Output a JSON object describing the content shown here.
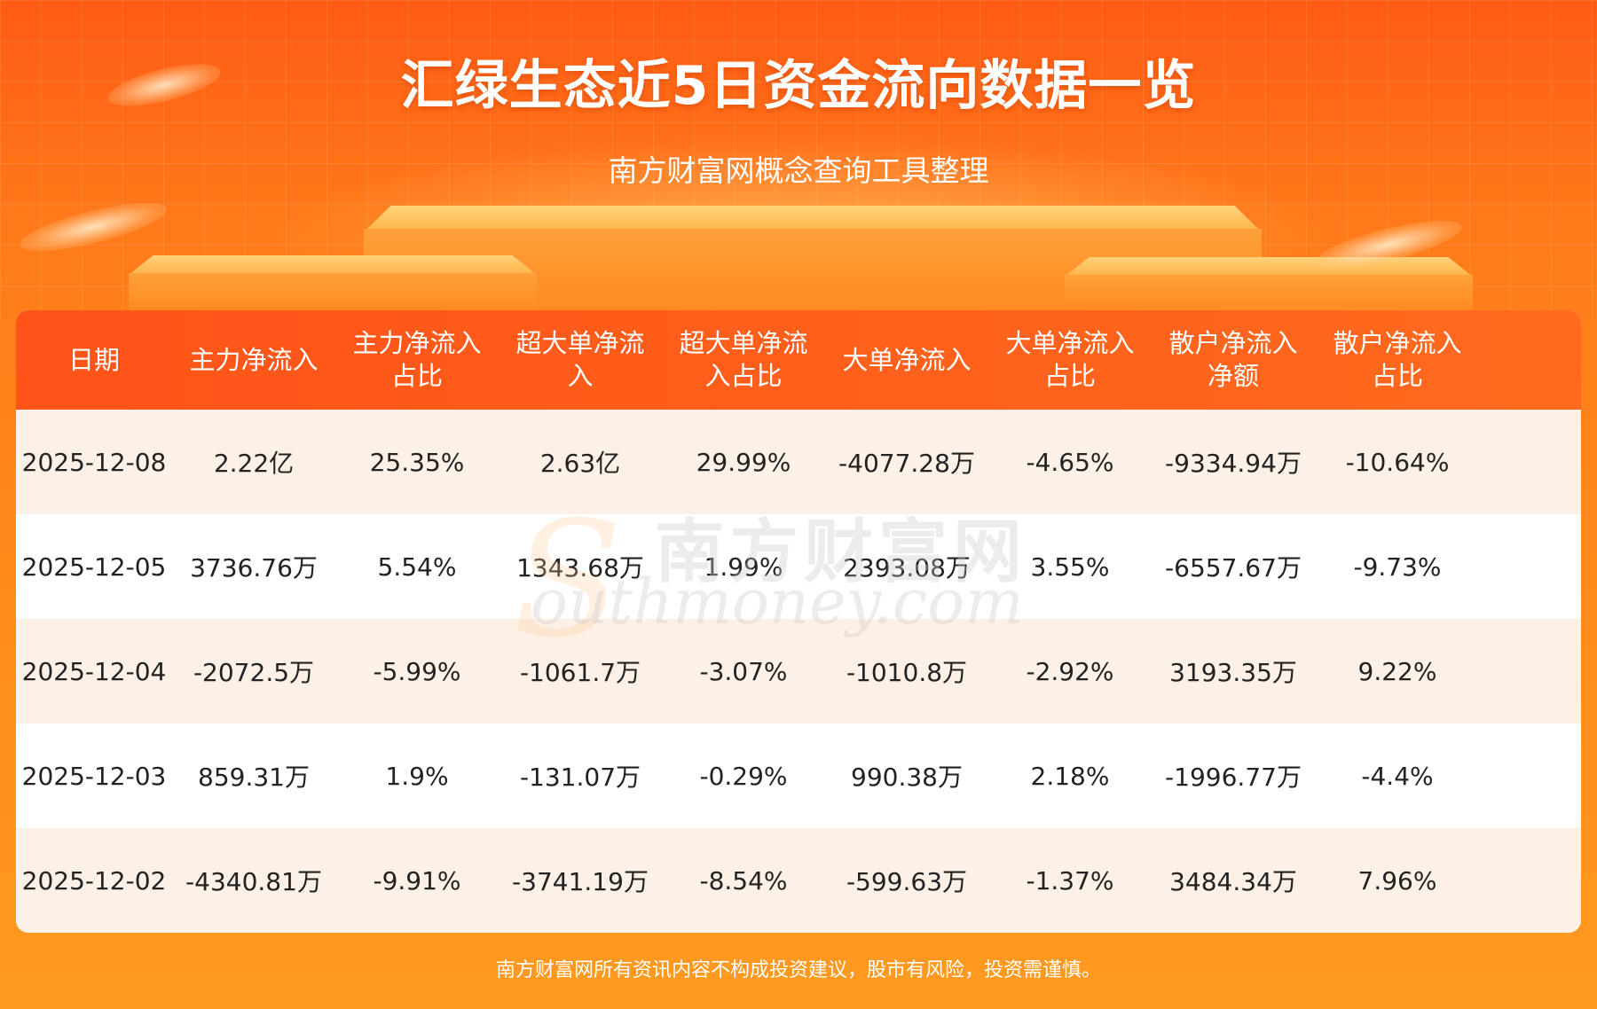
{
  "header": {
    "title": "汇绿生态近5日资金流向数据一览",
    "subtitle": "南方财富网概念查询工具整理"
  },
  "table": {
    "columns": [
      {
        "line1": "日期",
        "line2": ""
      },
      {
        "line1": "主力净流入",
        "line2": ""
      },
      {
        "line1": "主力净流入",
        "line2": "占比"
      },
      {
        "line1": "超大单净流",
        "line2": "入"
      },
      {
        "line1": "超大单净流",
        "line2": "入占比"
      },
      {
        "line1": "大单净流入",
        "line2": ""
      },
      {
        "line1": "大单净流入",
        "line2": "占比"
      },
      {
        "line1": "散户净流入",
        "line2": "净额"
      },
      {
        "line1": "散户净流入",
        "line2": "占比"
      }
    ],
    "rows": [
      [
        "2025-12-08",
        "2.22亿",
        "25.35%",
        "2.63亿",
        "29.99%",
        "-4077.28万",
        "-4.65%",
        "-9334.94万",
        "-10.64%"
      ],
      [
        "2025-12-05",
        "3736.76万",
        "5.54%",
        "1343.68万",
        "1.99%",
        "2393.08万",
        "3.55%",
        "-6557.67万",
        "-9.73%"
      ],
      [
        "2025-12-04",
        "-2072.5万",
        "-5.99%",
        "-1061.7万",
        "-3.07%",
        "-1010.8万",
        "-2.92%",
        "3193.35万",
        "9.22%"
      ],
      [
        "2025-12-03",
        "859.31万",
        "1.9%",
        "-131.07万",
        "-0.29%",
        "990.38万",
        "2.18%",
        "-1996.77万",
        "-4.4%"
      ],
      [
        "2025-12-02",
        "-4340.81万",
        "-9.91%",
        "-3741.19万",
        "-8.54%",
        "-599.63万",
        "-1.37%",
        "3484.34万",
        "7.96%"
      ]
    ]
  },
  "watermark": {
    "cn": "南方财富网",
    "en": "outhmoney.com",
    "s": "S"
  },
  "footer": {
    "disclaimer": "南方财富网所有资讯内容不构成投资建议，股市有风险，投资需谨慎。"
  },
  "colors": {
    "header_bg": "#ff5318",
    "row_odd": "#fdf1e7",
    "row_even": "#ffffff",
    "page_bg": "#ff7a1a"
  }
}
